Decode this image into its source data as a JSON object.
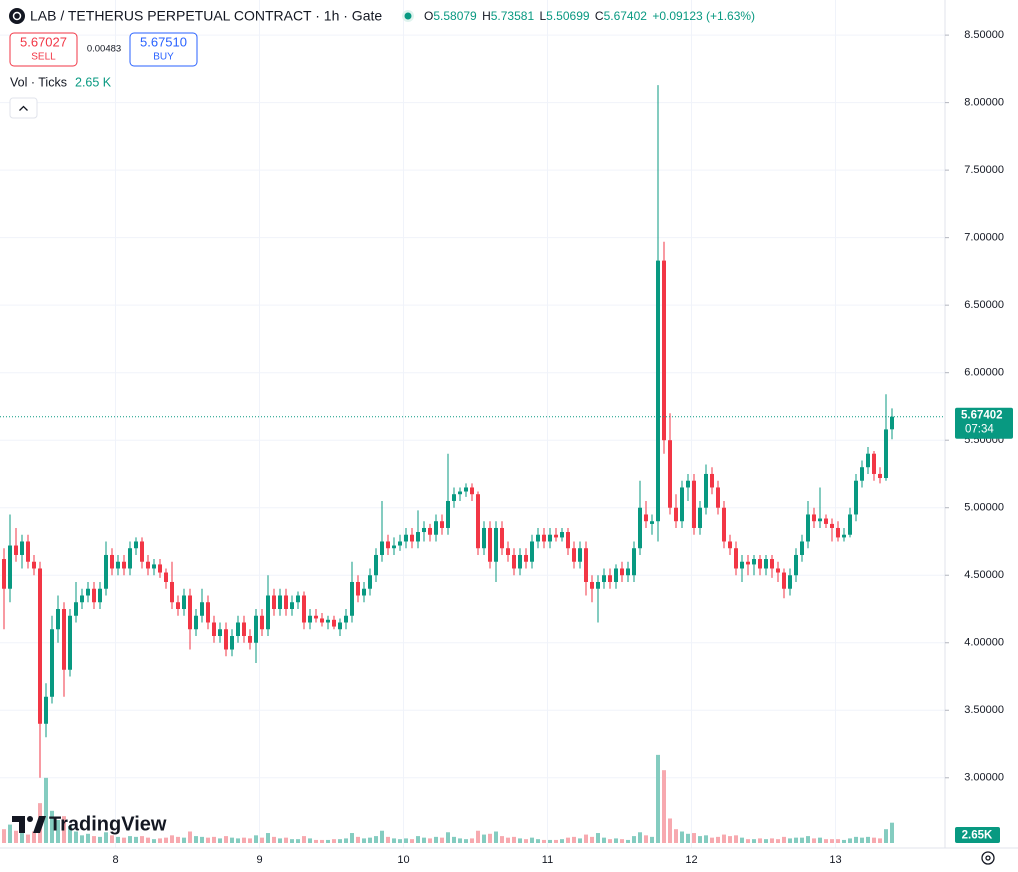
{
  "chart_data": {
    "type": "candlestick",
    "title": "LAB / TETHERUS PERPETUAL CONTRACT · 1h · Gate",
    "ohlc_labels": [
      "O",
      "H",
      "L",
      "C"
    ],
    "change_label": "+0.09123 (+1.63%)",
    "sell_price": "5.67027",
    "sell_label": "SELL",
    "spread": "0.00483",
    "buy_price": "5.67510",
    "buy_label": "BUY",
    "volume_title": "Vol · Ticks",
    "volume_label": "2.65 K",
    "volume_badge": "2.65K",
    "countdown": "07:34",
    "logo": "TradingView",
    "up_color": "#089981",
    "down_color": "#f23645",
    "volume_up_color": "#84ccc0",
    "volume_down_color": "#f7a9af",
    "grid": true,
    "ylim": [
      2.48,
      8.76
    ],
    "volume_ylim": [
      0,
      110000
    ],
    "yticks": [
      {
        "value": 3.0,
        "label": "3.00000"
      },
      {
        "value": 3.5,
        "label": "3.50000"
      },
      {
        "value": 4.0,
        "label": "4.00000"
      },
      {
        "value": 4.5,
        "label": "4.50000"
      },
      {
        "value": 5.0,
        "label": "5.00000"
      },
      {
        "value": 5.5,
        "label": "5.50000"
      },
      {
        "value": 6.0,
        "label": "6.00000"
      },
      {
        "value": 6.5,
        "label": "6.50000"
      },
      {
        "value": 7.0,
        "label": "7.00000"
      },
      {
        "value": 7.5,
        "label": "7.50000"
      },
      {
        "value": 8.0,
        "label": "8.00000"
      },
      {
        "value": 8.5,
        "label": "8.50000"
      }
    ],
    "categories": [
      null,
      null,
      null,
      null,
      null,
      null,
      null,
      null,
      null,
      null,
      null,
      null,
      null,
      null,
      null,
      null,
      null,
      null,
      null,
      "8",
      null,
      null,
      null,
      null,
      null,
      null,
      null,
      null,
      null,
      null,
      null,
      null,
      null,
      null,
      null,
      null,
      null,
      null,
      null,
      null,
      null,
      null,
      null,
      "9",
      null,
      null,
      null,
      null,
      null,
      null,
      null,
      null,
      null,
      null,
      null,
      null,
      null,
      null,
      null,
      null,
      null,
      null,
      null,
      null,
      null,
      null,
      null,
      "10",
      null,
      null,
      null,
      null,
      null,
      null,
      null,
      null,
      null,
      null,
      null,
      null,
      null,
      null,
      null,
      null,
      null,
      null,
      null,
      null,
      null,
      null,
      null,
      "11",
      null,
      null,
      null,
      null,
      null,
      null,
      null,
      null,
      null,
      null,
      null,
      null,
      null,
      null,
      null,
      null,
      null,
      null,
      null,
      null,
      null,
      null,
      null,
      "12",
      null,
      null,
      null,
      null,
      null,
      null,
      null,
      null,
      null,
      null,
      null,
      null,
      null,
      null,
      null,
      null,
      null,
      null,
      null,
      null,
      null,
      null,
      null,
      "13",
      null,
      null,
      null,
      null,
      null,
      null,
      null,
      null,
      null
    ],
    "open": [
      4.62,
      4.4,
      4.72,
      4.65,
      4.75,
      4.6,
      4.55,
      3.4,
      3.6,
      4.1,
      4.25,
      3.8,
      4.2,
      4.3,
      4.35,
      4.4,
      4.3,
      4.4,
      4.65,
      4.55,
      4.6,
      4.55,
      4.7,
      4.75,
      4.6,
      4.55,
      4.58,
      4.52,
      4.45,
      4.3,
      4.25,
      4.35,
      4.1,
      4.2,
      4.3,
      4.15,
      4.05,
      4.1,
      3.95,
      4.05,
      4.15,
      4.05,
      4.0,
      4.2,
      4.1,
      4.35,
      4.25,
      4.35,
      4.25,
      4.3,
      4.35,
      4.15,
      4.2,
      4.18,
      4.15,
      4.17,
      4.1,
      4.15,
      4.2,
      4.45,
      4.35,
      4.4,
      4.5,
      4.65,
      4.75,
      4.7,
      4.72,
      4.75,
      4.8,
      4.75,
      4.82,
      4.85,
      4.8,
      4.9,
      4.85,
      5.05,
      5.1,
      5.12,
      5.15,
      5.1,
      4.7,
      4.85,
      4.6,
      4.85,
      4.7,
      4.65,
      4.55,
      4.65,
      4.6,
      4.75,
      4.8,
      4.75,
      4.8,
      4.78,
      4.82,
      4.7,
      4.6,
      4.7,
      4.45,
      4.4,
      4.45,
      4.5,
      4.45,
      4.55,
      4.5,
      4.5,
      4.7,
      4.95,
      4.88,
      4.9,
      6.83,
      5.5,
      5.0,
      4.9,
      5.15,
      5.2,
      4.85,
      5.0,
      5.25,
      5.15,
      5.0,
      4.75,
      4.7,
      4.55,
      4.6,
      4.58,
      4.62,
      4.55,
      4.62,
      4.55,
      4.52,
      4.4,
      4.5,
      4.65,
      4.75,
      4.95,
      4.9,
      4.92,
      4.88,
      4.85,
      4.78,
      4.8,
      4.95,
      5.2,
      5.3,
      5.4,
      5.25,
      5.22,
      5.58079
    ],
    "high": [
      4.7,
      4.95,
      4.85,
      4.8,
      4.8,
      4.65,
      4.6,
      3.7,
      4.2,
      4.35,
      4.3,
      4.25,
      4.45,
      4.4,
      4.45,
      4.45,
      4.45,
      4.75,
      4.7,
      4.65,
      4.65,
      4.75,
      4.78,
      4.78,
      4.65,
      4.62,
      4.62,
      4.55,
      4.6,
      4.35,
      4.4,
      4.4,
      4.25,
      4.4,
      4.35,
      4.2,
      4.15,
      4.15,
      4.1,
      4.2,
      4.2,
      4.1,
      4.25,
      4.25,
      4.5,
      4.4,
      4.4,
      4.4,
      4.35,
      4.38,
      4.38,
      4.25,
      4.25,
      4.22,
      4.2,
      4.2,
      4.18,
      4.25,
      4.6,
      4.5,
      4.45,
      4.55,
      4.7,
      5.05,
      4.8,
      4.78,
      4.8,
      4.85,
      4.85,
      4.98,
      4.9,
      4.88,
      4.95,
      4.95,
      5.4,
      5.15,
      5.15,
      5.18,
      5.18,
      5.12,
      4.9,
      4.9,
      4.9,
      4.9,
      4.75,
      4.7,
      4.7,
      4.7,
      4.8,
      4.85,
      4.85,
      4.85,
      4.85,
      4.85,
      4.85,
      4.75,
      4.75,
      4.75,
      4.5,
      4.5,
      4.55,
      4.55,
      4.58,
      4.6,
      4.6,
      4.75,
      5.2,
      5.05,
      4.95,
      8.13,
      6.97,
      5.7,
      5.1,
      5.2,
      5.25,
      5.25,
      5.05,
      5.32,
      5.3,
      5.2,
      5.05,
      4.8,
      4.75,
      4.65,
      4.65,
      4.65,
      4.65,
      4.65,
      4.65,
      4.6,
      4.55,
      4.55,
      4.7,
      4.8,
      5.05,
      5.0,
      5.15,
      4.95,
      4.92,
      4.9,
      4.85,
      5.0,
      5.25,
      5.35,
      5.45,
      5.42,
      5.3,
      5.84,
      5.73581
    ],
    "low": [
      4.1,
      4.3,
      4.6,
      4.55,
      4.55,
      4.5,
      3.0,
      3.3,
      3.55,
      4.0,
      3.6,
      3.75,
      4.15,
      4.25,
      4.3,
      4.25,
      4.25,
      4.35,
      4.5,
      4.5,
      4.5,
      4.5,
      4.65,
      4.55,
      4.5,
      4.5,
      4.48,
      4.4,
      4.25,
      4.2,
      4.2,
      3.95,
      4.05,
      4.15,
      4.1,
      4.0,
      4.0,
      3.9,
      3.9,
      4.0,
      4.0,
      3.95,
      3.85,
      4.05,
      4.05,
      4.2,
      4.2,
      4.2,
      4.2,
      4.25,
      4.1,
      4.1,
      4.15,
      4.12,
      4.1,
      4.1,
      4.05,
      4.1,
      4.15,
      4.3,
      4.3,
      4.35,
      4.45,
      4.6,
      4.65,
      4.65,
      4.68,
      4.7,
      4.7,
      4.7,
      4.75,
      4.75,
      4.75,
      4.8,
      4.8,
      5.0,
      5.05,
      5.08,
      5.05,
      4.65,
      4.65,
      4.55,
      4.45,
      4.65,
      4.6,
      4.5,
      4.5,
      4.55,
      4.55,
      4.7,
      4.7,
      4.7,
      4.75,
      4.75,
      4.65,
      4.55,
      4.55,
      4.35,
      4.3,
      4.15,
      4.4,
      4.4,
      4.4,
      4.45,
      4.45,
      4.45,
      4.65,
      4.85,
      4.8,
      4.75,
      5.4,
      4.95,
      4.85,
      4.85,
      5.05,
      4.8,
      4.8,
      4.95,
      5.1,
      4.95,
      4.7,
      4.65,
      4.5,
      4.45,
      4.5,
      4.5,
      4.5,
      4.5,
      4.48,
      4.45,
      4.33,
      4.35,
      4.45,
      4.6,
      4.7,
      4.85,
      4.85,
      4.85,
      4.75,
      4.75,
      4.75,
      4.78,
      4.9,
      5.15,
      5.25,
      5.2,
      5.18,
      5.2,
      5.50699
    ],
    "close": [
      4.4,
      4.72,
      4.65,
      4.75,
      4.6,
      4.55,
      3.4,
      3.6,
      4.1,
      4.25,
      3.8,
      4.2,
      4.3,
      4.35,
      4.4,
      4.3,
      4.4,
      4.65,
      4.55,
      4.6,
      4.55,
      4.7,
      4.75,
      4.6,
      4.55,
      4.58,
      4.52,
      4.45,
      4.3,
      4.25,
      4.35,
      4.1,
      4.2,
      4.3,
      4.15,
      4.05,
      4.1,
      3.95,
      4.05,
      4.15,
      4.05,
      4.0,
      4.2,
      4.1,
      4.35,
      4.25,
      4.35,
      4.25,
      4.3,
      4.35,
      4.15,
      4.2,
      4.18,
      4.15,
      4.17,
      4.12,
      4.15,
      4.2,
      4.45,
      4.35,
      4.4,
      4.5,
      4.65,
      4.75,
      4.7,
      4.72,
      4.75,
      4.8,
      4.75,
      4.82,
      4.85,
      4.8,
      4.9,
      4.85,
      5.05,
      5.1,
      5.12,
      5.15,
      5.1,
      4.7,
      4.85,
      4.6,
      4.85,
      4.7,
      4.65,
      4.55,
      4.65,
      4.6,
      4.75,
      4.8,
      4.75,
      4.8,
      4.78,
      4.82,
      4.7,
      4.6,
      4.7,
      4.45,
      4.4,
      4.45,
      4.5,
      4.45,
      4.55,
      4.5,
      4.55,
      4.7,
      5.0,
      4.9,
      4.9,
      6.83,
      5.5,
      5.0,
      4.9,
      5.15,
      5.2,
      4.85,
      5.0,
      5.25,
      5.15,
      5.0,
      4.75,
      4.7,
      4.55,
      4.6,
      4.58,
      4.62,
      4.55,
      4.62,
      4.55,
      4.52,
      4.4,
      4.5,
      4.65,
      4.75,
      4.95,
      4.9,
      4.92,
      4.88,
      4.85,
      4.78,
      4.8,
      4.95,
      5.2,
      5.3,
      5.4,
      5.25,
      5.22,
      5.58,
      5.67402
    ],
    "volume": [
      1800,
      2400,
      1600,
      1300,
      1100,
      1500,
      5200,
      8500,
      4200,
      3000,
      3500,
      2200,
      1500,
      1000,
      1200,
      900,
      800,
      1400,
      1000,
      800,
      700,
      900,
      800,
      900,
      700,
      500,
      600,
      700,
      1000,
      800,
      700,
      1500,
      900,
      800,
      700,
      800,
      600,
      900,
      700,
      600,
      700,
      600,
      1000,
      700,
      1300,
      800,
      600,
      700,
      500,
      500,
      900,
      600,
      400,
      400,
      400,
      500,
      500,
      600,
      1300,
      800,
      600,
      700,
      900,
      1600,
      800,
      600,
      500,
      600,
      500,
      900,
      700,
      600,
      800,
      700,
      1400,
      800,
      600,
      500,
      600,
      1600,
      1100,
      1200,
      1500,
      900,
      700,
      800,
      600,
      500,
      700,
      500,
      400,
      400,
      400,
      500,
      700,
      800,
      600,
      1100,
      800,
      1300,
      700,
      500,
      600,
      500,
      400,
      900,
      1400,
      1000,
      800,
      11500,
      9500,
      3200,
      1800,
      1500,
      1200,
      1300,
      900,
      1000,
      700,
      800,
      1100,
      900,
      1000,
      700,
      500,
      500,
      600,
      500,
      600,
      500,
      800,
      600,
      700,
      700,
      900,
      600,
      700,
      500,
      500,
      500,
      400,
      600,
      800,
      700,
      800,
      700,
      600,
      1800,
      2650
    ]
  }
}
